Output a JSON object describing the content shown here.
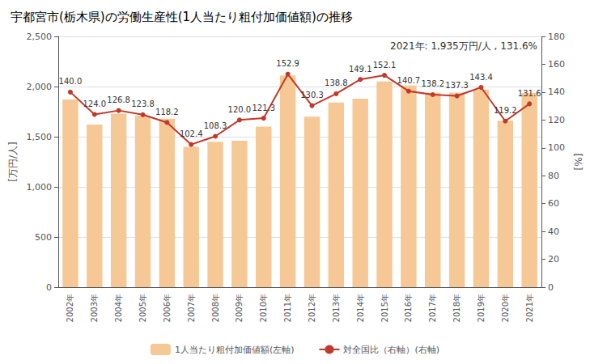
{
  "chart_data": {
    "type": "bar",
    "title": "宇都宮市(栃木県)の労働生産性(1人当たり粗付加価値額)の推移",
    "categories": [
      "2002年",
      "2003年",
      "2004年",
      "2005年",
      "2006年",
      "2007年",
      "2008年",
      "2009年",
      "2010年",
      "2011年",
      "2012年",
      "2013年",
      "2014年",
      "2015年",
      "2016年",
      "2017年",
      "2018年",
      "2019年",
      "2020年",
      "2021年"
    ],
    "series": [
      {
        "name": "1人当たり粗付加価値額(左軸)",
        "type": "bar",
        "color": "#F5C896",
        "values": [
          1870,
          1620,
          1730,
          1710,
          1680,
          1400,
          1450,
          1460,
          1600,
          2110,
          1700,
          1840,
          1880,
          2050,
          2010,
          1940,
          1940,
          1970,
          1660,
          1935
        ]
      },
      {
        "name": "対全国比（右軸）(右軸)",
        "type": "line",
        "color": "#C0392B",
        "axis": "y2",
        "marker": "circle",
        "data_labels": true,
        "values": [
          140.0,
          124.0,
          126.8,
          123.8,
          118.2,
          102.4,
          108.3,
          120.0,
          121.3,
          152.9,
          130.3,
          138.8,
          149.1,
          152.1,
          140.7,
          138.2,
          137.3,
          143.4,
          119.2,
          131.6
        ],
        "value_labels": [
          "140.0",
          "124.0",
          "126.8",
          "123.8",
          "118.2",
          "102.4",
          "108.3",
          "120.0",
          "121.3",
          "152.9",
          "130.3",
          "138.8",
          "149.1",
          "152.1",
          "140.7",
          "138.2",
          "137.3",
          "143.4",
          "119.2",
          "131.6"
        ]
      }
    ],
    "ylabel": "[万円/人]",
    "y2label": "[%]",
    "ylim": [
      0,
      2500
    ],
    "yticks": [
      0,
      500,
      {
        "value": 1000,
        "label": "1,000"
      },
      {
        "value": 1500,
        "label": "1,500"
      },
      {
        "value": 2000,
        "label": "2,000"
      },
      {
        "value": 2500,
        "label": "2,500"
      }
    ],
    "y2lim": [
      0,
      180
    ],
    "y2ticks": [
      0,
      20,
      40,
      60,
      80,
      100,
      120,
      140,
      160,
      180
    ],
    "annotation": "2021年: 1,935万円/人 , 131.6%",
    "grid": true,
    "legend": "bottom"
  }
}
